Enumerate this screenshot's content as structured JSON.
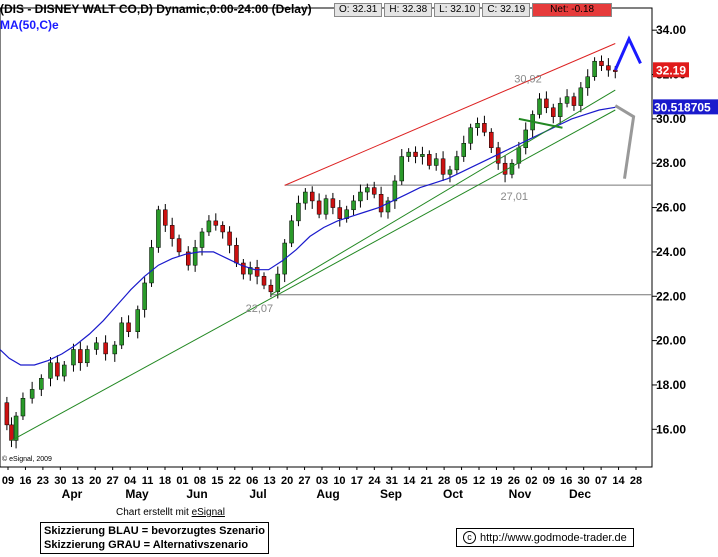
{
  "header": {
    "title": "(DIS - DISNEY WALT CO,D) Dynamic,0:00-24:00 (Delay)",
    "ma_label": "MA(50,C)e",
    "ohlc": {
      "open": "O: 32.31",
      "high": "H: 32.38",
      "low": "L: 32.10",
      "close": "C: 32.19",
      "net": "Net: -0.18"
    }
  },
  "footer": {
    "copyright": "© eSignal, 2009",
    "credit_prefix": "Chart erstellt mit ",
    "credit_link": "eSignal",
    "note_blue": "Skizzierung BLAU = bevorzugtes Szenario",
    "note_gray": "Skizzierung GRAU = Alternativszenario",
    "url": "http://www.godmode-trader.de",
    "copy_symbol": "c"
  },
  "colors": {
    "candle_up": "#2a9a2a",
    "candle_down": "#cc1111",
    "ma": "#1a1acc",
    "resistance": "#dd2222",
    "support": "#228822",
    "scenario_blue": "#1a1aff",
    "scenario_gray": "#999999",
    "horizontal": "#777777"
  },
  "chart_data": {
    "type": "candlestick",
    "ylim": [
      14.3,
      35.0
    ],
    "y_ticks": [
      "34.00",
      "32.00",
      "30.00",
      "28.00",
      "26.00",
      "24.00",
      "22.00",
      "20.00",
      "18.00",
      "16.00"
    ],
    "x_day_labels": [
      "09",
      "16",
      "23",
      "30",
      "13",
      "20",
      "27",
      "04",
      "11",
      "18",
      "01",
      "08",
      "15",
      "22",
      "06",
      "13",
      "20",
      "27",
      "03",
      "10",
      "17",
      "24",
      "31",
      "14",
      "21",
      "28",
      "05",
      "12",
      "19",
      "26",
      "02",
      "09",
      "16",
      "30",
      "07",
      "14",
      "28"
    ],
    "x_month_labels": [
      "Apr",
      "May",
      "Jun",
      "Jul",
      "Aug",
      "Sep",
      "Oct",
      "Nov",
      "Dec"
    ],
    "current_price": "32.19",
    "current_ma": "30.518705",
    "annotations": [
      "30,92",
      "27,01",
      "22,07"
    ],
    "horizontal_levels": [
      27.01,
      22.07
    ],
    "price_path": [
      [
        0,
        17.2
      ],
      [
        3,
        16.2
      ],
      [
        5,
        15.5
      ],
      [
        7,
        16.6
      ],
      [
        10,
        17.4
      ],
      [
        14,
        17.8
      ],
      [
        18,
        18.3
      ],
      [
        22,
        19.0
      ],
      [
        25,
        18.4
      ],
      [
        28,
        18.9
      ],
      [
        32,
        19.6
      ],
      [
        35,
        19.0
      ],
      [
        38,
        19.6
      ],
      [
        42,
        19.9
      ],
      [
        46,
        19.4
      ],
      [
        50,
        19.8
      ],
      [
        53,
        20.8
      ],
      [
        56,
        20.4
      ],
      [
        60,
        21.4
      ],
      [
        63,
        22.6
      ],
      [
        66,
        24.2
      ],
      [
        69,
        25.9
      ],
      [
        72,
        25.2
      ],
      [
        75,
        24.6
      ],
      [
        78,
        24.0
      ],
      [
        82,
        23.4
      ],
      [
        85,
        24.2
      ],
      [
        88,
        24.9
      ],
      [
        91,
        25.4
      ],
      [
        94,
        25.2
      ],
      [
        97,
        24.9
      ],
      [
        100,
        24.3
      ],
      [
        103,
        23.5
      ],
      [
        106,
        23.0
      ],
      [
        109,
        23.3
      ],
      [
        112,
        22.9
      ],
      [
        115,
        22.5
      ],
      [
        118,
        22.2
      ],
      [
        121,
        23.0
      ],
      [
        124,
        24.4
      ],
      [
        127,
        25.4
      ],
      [
        130,
        26.2
      ],
      [
        133,
        26.7
      ],
      [
        136,
        26.3
      ],
      [
        139,
        25.7
      ],
      [
        142,
        26.4
      ],
      [
        145,
        26.0
      ],
      [
        148,
        25.5
      ],
      [
        151,
        25.9
      ],
      [
        154,
        26.3
      ],
      [
        157,
        26.7
      ],
      [
        160,
        26.9
      ],
      [
        163,
        26.6
      ],
      [
        166,
        25.8
      ],
      [
        169,
        26.3
      ],
      [
        172,
        27.2
      ],
      [
        175,
        28.3
      ],
      [
        178,
        28.5
      ],
      [
        181,
        28.3
      ],
      [
        184,
        28.4
      ],
      [
        187,
        27.9
      ],
      [
        190,
        28.2
      ],
      [
        193,
        27.5
      ],
      [
        196,
        27.7
      ],
      [
        199,
        28.3
      ],
      [
        202,
        28.9
      ],
      [
        205,
        29.6
      ],
      [
        208,
        29.8
      ],
      [
        211,
        29.4
      ],
      [
        214,
        28.7
      ],
      [
        217,
        28.0
      ],
      [
        220,
        27.5
      ],
      [
        223,
        28.0
      ],
      [
        226,
        28.7
      ],
      [
        229,
        29.5
      ],
      [
        232,
        30.2
      ],
      [
        235,
        30.9
      ],
      [
        238,
        30.5
      ],
      [
        241,
        30.1
      ],
      [
        244,
        30.7
      ],
      [
        247,
        31.0
      ],
      [
        250,
        30.6
      ],
      [
        253,
        31.4
      ],
      [
        256,
        31.9
      ],
      [
        259,
        32.6
      ],
      [
        262,
        32.4
      ],
      [
        265,
        32.2
      ],
      [
        268,
        32.19
      ]
    ],
    "ma_path": [
      [
        0,
        19.6
      ],
      [
        4,
        19.2
      ],
      [
        9,
        18.9
      ],
      [
        15,
        18.9
      ],
      [
        21,
        19.1
      ],
      [
        27,
        19.4
      ],
      [
        33,
        19.8
      ],
      [
        39,
        20.3
      ],
      [
        45,
        20.9
      ],
      [
        51,
        21.6
      ],
      [
        57,
        22.3
      ],
      [
        63,
        22.9
      ],
      [
        69,
        23.4
      ],
      [
        75,
        23.7
      ],
      [
        81,
        23.9
      ],
      [
        87,
        24.0
      ],
      [
        93,
        24.0
      ],
      [
        99,
        23.7
      ],
      [
        105,
        23.4
      ],
      [
        111,
        23.2
      ],
      [
        117,
        23.2
      ],
      [
        123,
        23.6
      ],
      [
        129,
        24.1
      ],
      [
        135,
        24.7
      ],
      [
        141,
        25.1
      ],
      [
        147,
        25.4
      ],
      [
        153,
        25.6
      ],
      [
        159,
        25.8
      ],
      [
        165,
        26.0
      ],
      [
        171,
        26.3
      ],
      [
        177,
        26.6
      ],
      [
        183,
        26.9
      ],
      [
        189,
        27.1
      ],
      [
        195,
        27.3
      ],
      [
        201,
        27.6
      ],
      [
        207,
        27.9
      ],
      [
        213,
        28.2
      ],
      [
        219,
        28.5
      ],
      [
        225,
        28.8
      ],
      [
        231,
        29.1
      ],
      [
        237,
        29.4
      ],
      [
        243,
        29.7
      ],
      [
        249,
        30.0
      ],
      [
        255,
        30.2
      ],
      [
        261,
        30.4
      ],
      [
        268,
        30.52
      ]
    ],
    "trendlines": [
      {
        "kind": "resistance",
        "from": [
          124,
          27.0
        ],
        "to": [
          268,
          33.4
        ]
      },
      {
        "kind": "support",
        "from": [
          5,
          15.5
        ],
        "to": [
          268,
          30.4
        ]
      },
      {
        "kind": "support",
        "from": [
          118,
          22.07
        ],
        "to": [
          268,
          31.3
        ]
      },
      {
        "kind": "pattern",
        "from": [
          226,
          30.0
        ],
        "to": [
          245,
          29.6
        ]
      }
    ],
    "scenario_blue": [
      [
        268,
        32.2
      ],
      [
        274,
        33.6
      ],
      [
        279,
        32.5
      ]
    ],
    "scenario_gray": [
      [
        268,
        30.6
      ],
      [
        276,
        30.1
      ],
      [
        272,
        27.3
      ]
    ]
  }
}
